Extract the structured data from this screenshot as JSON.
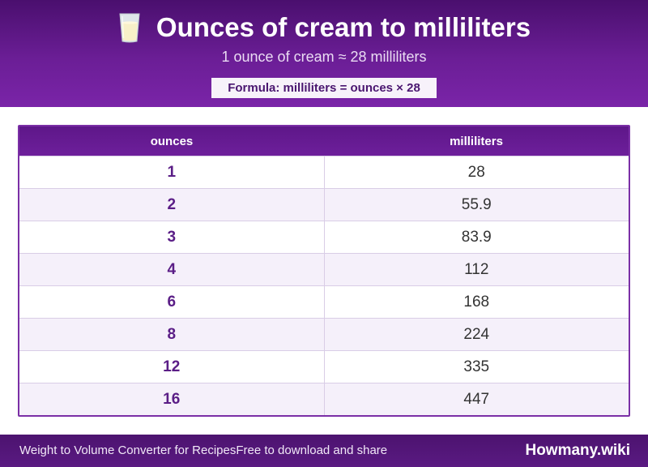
{
  "header": {
    "icon": "milk-glass-icon",
    "title": "Ounces of cream to milliliters",
    "subtitle": "1 ounce of cream ≈ 28 milliliters",
    "formula": "Formula: milliliters = ounces × 28"
  },
  "table": {
    "headers": [
      "ounces",
      "milliliters"
    ],
    "rows": [
      {
        "ounces": "1",
        "milliliters": "28"
      },
      {
        "ounces": "2",
        "milliliters": "55.9"
      },
      {
        "ounces": "3",
        "milliliters": "83.9"
      },
      {
        "ounces": "4",
        "milliliters": "112"
      },
      {
        "ounces": "6",
        "milliliters": "168"
      },
      {
        "ounces": "8",
        "milliliters": "224"
      },
      {
        "ounces": "12",
        "milliliters": "335"
      },
      {
        "ounces": "16",
        "milliliters": "447"
      }
    ]
  },
  "footer": {
    "left_text_1": "Weight to Volume Converter for Recipes",
    "left_text_2": "Free to download and share",
    "brand": "Howmany.wiki"
  },
  "colors": {
    "header_purple": "#6b1e96",
    "accent": "#5a1d86",
    "row_alt": "#f5f0fa"
  }
}
